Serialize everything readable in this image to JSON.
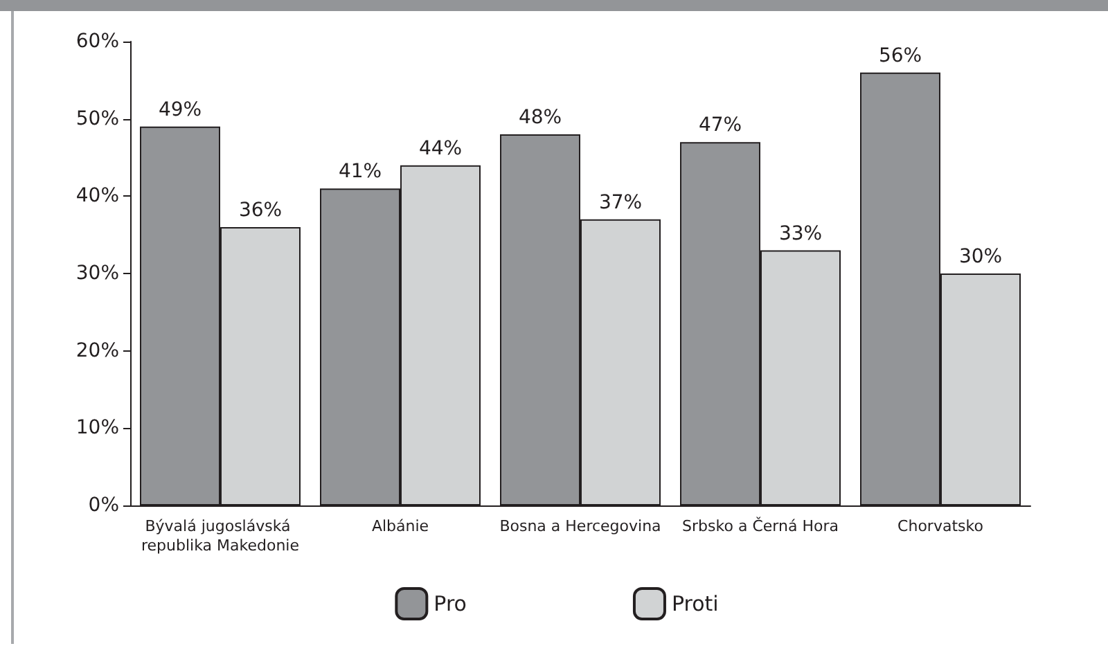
{
  "chart_data": {
    "type": "bar",
    "categories": [
      "Bývalá jugoslávská republika Makedonie",
      "Albánie",
      "Bosna a Hercegovina",
      "Srbsko a Černá Hora",
      "Chorvatsko"
    ],
    "series": [
      {
        "name": "Pro",
        "color": "#939598",
        "values": [
          49,
          41,
          48,
          47,
          56
        ],
        "value_labels": [
          "49%",
          "41%",
          "48%",
          "47%",
          "56%"
        ]
      },
      {
        "name": "Proti",
        "color": "#d1d3d4",
        "values": [
          36,
          44,
          37,
          33,
          30
        ],
        "value_labels": [
          "36%",
          "44%",
          "37%",
          "33%",
          "30%"
        ]
      }
    ],
    "ylim": [
      0,
      60
    ],
    "yticks": [
      {
        "value": 0,
        "label": "0%"
      },
      {
        "value": 10,
        "label": "10%"
      },
      {
        "value": 20,
        "label": "20%"
      },
      {
        "value": 30,
        "label": "30%"
      },
      {
        "value": 40,
        "label": "40%"
      },
      {
        "value": 50,
        "label": "50%"
      },
      {
        "value": 60,
        "label": "60%"
      }
    ],
    "grid": false,
    "legend": "bottom"
  }
}
